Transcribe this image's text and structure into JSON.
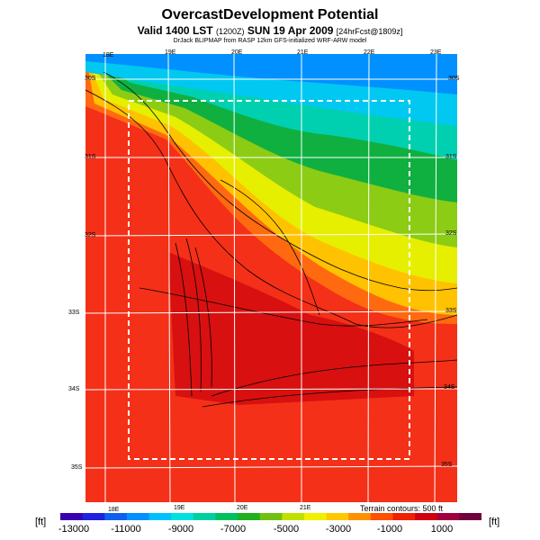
{
  "header": {
    "title": "OvercastDevelopment Potential",
    "valid_main": "Valid 1400 LST",
    "valid_utc": "(1200Z)",
    "valid_date": "SUN 19 Apr 2009",
    "forecast_info": "[24hrFcst@1809z]",
    "credit": "DrJack BLIPMAP from RASP 12km GFS-initialized WRF-ARW model"
  },
  "map": {
    "lon_labels_top": [
      "18E",
      "19E",
      "20E",
      "21E",
      "22E",
      "23E"
    ],
    "lon_labels_bottom": [
      "18E",
      "19E",
      "20E",
      "21E"
    ],
    "lat_labels_left": [
      "30S",
      "31S",
      "32S",
      "33S",
      "34S",
      "35S"
    ],
    "lat_labels_right": [
      "30S",
      "31S",
      "32S",
      "33S",
      "34S",
      "35S"
    ],
    "contour_note": "Terrain contours: 500 ft"
  },
  "colorbar": {
    "unit_label": "[ft]",
    "tick_labels": [
      "-13000",
      "-11000",
      "-9000",
      "-7000",
      "-5000",
      "-3000",
      "-1000",
      "1000"
    ],
    "colors": [
      "#3a00b0",
      "#2020e0",
      "#1060f0",
      "#0090ff",
      "#00c0ff",
      "#00e0e0",
      "#00d0a0",
      "#00c060",
      "#20b020",
      "#70c010",
      "#c0e000",
      "#f0f000",
      "#ffc800",
      "#ff9000",
      "#ff5000",
      "#f02000",
      "#d00010",
      "#a00040",
      "#70003c"
    ]
  }
}
